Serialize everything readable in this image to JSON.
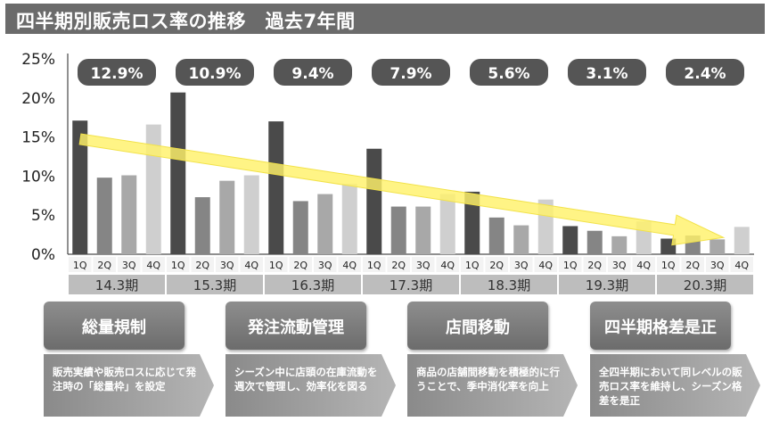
{
  "title": "四半期別販売ロス率の推移　過去7年間",
  "colors": {
    "q1": "#4a4a4a",
    "q2": "#858585",
    "q3": "#a8a8a8",
    "q4": "#cfcfcf",
    "pill": "#555555",
    "period_band": "#bdbdbd",
    "arrow": "#fff26a"
  },
  "chart_data": {
    "type": "bar",
    "y_ticks": [
      "25%",
      "20%",
      "15%",
      "10%",
      "5%",
      "0%"
    ],
    "ylim": [
      0,
      25
    ],
    "quarters": [
      "1Q",
      "2Q",
      "3Q",
      "4Q"
    ],
    "periods": [
      {
        "label": "14.3期",
        "annual": "12.9%",
        "values": [
          17.1,
          9.8,
          10.1,
          16.6
        ]
      },
      {
        "label": "15.3期",
        "annual": "10.9%",
        "values": [
          20.7,
          7.3,
          9.4,
          10.1
        ]
      },
      {
        "label": "16.3期",
        "annual": "9.4%",
        "values": [
          17.0,
          6.8,
          7.7,
          9.0
        ]
      },
      {
        "label": "17.3期",
        "annual": "7.9%",
        "values": [
          13.5,
          6.1,
          6.1,
          7.7
        ]
      },
      {
        "label": "18.3期",
        "annual": "5.6%",
        "values": [
          8.0,
          4.7,
          3.7,
          7.0
        ]
      },
      {
        "label": "19.3期",
        "annual": "3.1%",
        "values": [
          3.6,
          3.0,
          2.3,
          4.2
        ]
      },
      {
        "label": "20.3期",
        "annual": "2.4%",
        "values": [
          2.0,
          2.4,
          1.9,
          3.5
        ]
      }
    ]
  },
  "categories": [
    {
      "title": "総量規制",
      "text": "販売実績や販売ロスに応じて発注時の「総量枠」を設定"
    },
    {
      "title": "発注流動管理",
      "text": "シーズン中に店頭の在庫流動を週次で管理し、効率化を図る"
    },
    {
      "title": "店間移動",
      "text": "商品の店舗間移動を積極的に行うことで、季中消化率を向上"
    },
    {
      "title": "四半期格差是正",
      "text": "全四半期において同レベルの販売ロス率を維持し、シーズン格差を是正"
    }
  ]
}
